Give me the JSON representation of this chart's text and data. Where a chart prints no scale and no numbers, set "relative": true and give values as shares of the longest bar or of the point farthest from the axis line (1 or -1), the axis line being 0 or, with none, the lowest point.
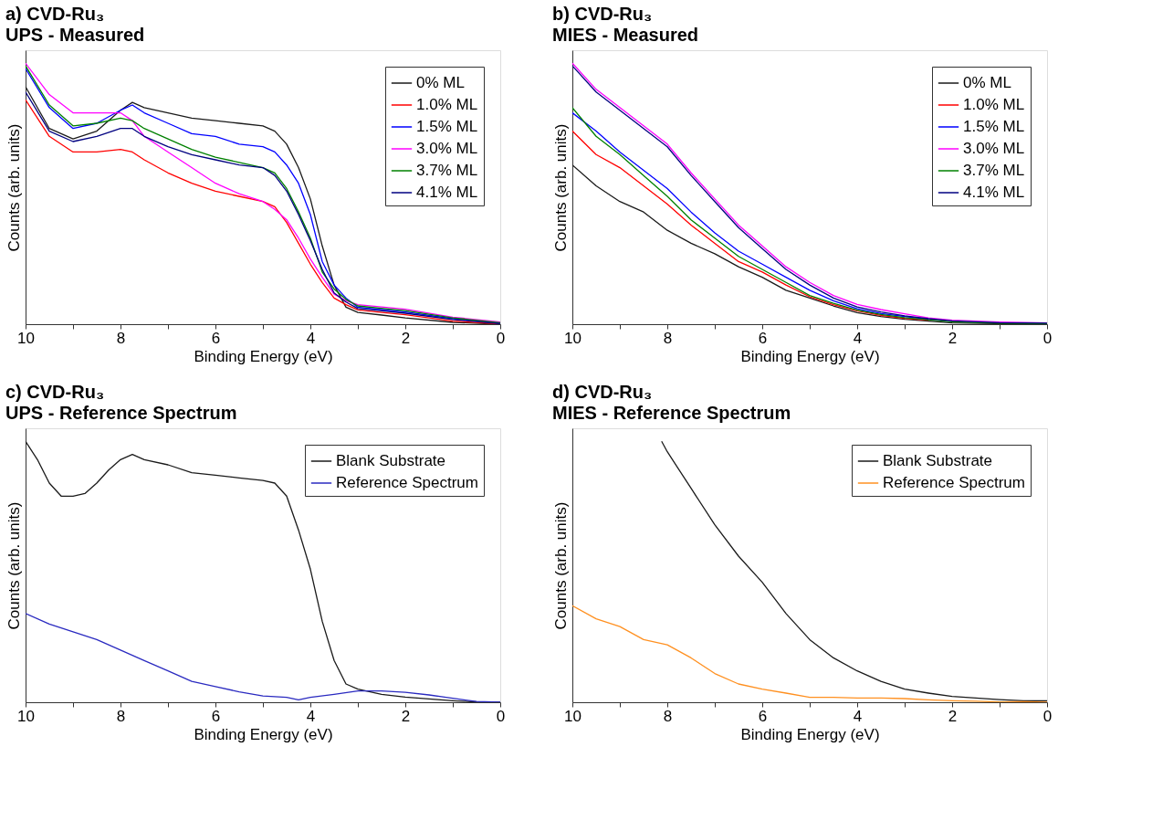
{
  "chart_data": [
    {
      "type": "line",
      "title": "a) CVD-Ru₃",
      "subtitle": "UPS - Measured",
      "xlabel": "Binding Energy (eV)",
      "ylabel": "Counts (arb. units)",
      "relative": true,
      "legend": "top right",
      "grid": false,
      "marker": "none",
      "line_style": "solid",
      "xlim": [
        10,
        0
      ],
      "xticks": [
        10,
        {
          "value": 9,
          "label": null
        },
        8,
        {
          "value": 7,
          "label": null
        },
        6,
        {
          "value": 5,
          "label": null
        },
        4,
        {
          "value": 3,
          "label": null
        },
        2,
        {
          "value": 1,
          "label": null
        },
        0
      ],
      "x": [
        10,
        9.5,
        9,
        8.5,
        8,
        7.75,
        7.5,
        7,
        6.5,
        6,
        5.5,
        5,
        4.75,
        4.5,
        4.25,
        4,
        3.75,
        3.5,
        3.25,
        3,
        2.5,
        2,
        1,
        0
      ],
      "series": [
        {
          "name": "0% ML",
          "color": "#1a1a1a",
          "values": [
            0.91,
            0.75,
            0.71,
            0.74,
            0.82,
            0.85,
            0.83,
            0.81,
            0.79,
            0.78,
            0.77,
            0.76,
            0.74,
            0.69,
            0.6,
            0.48,
            0.3,
            0.15,
            0.065,
            0.045,
            0.035,
            0.024,
            0.007,
            0
          ]
        },
        {
          "name": "1.0% ML",
          "color": "#ff0000",
          "values": [
            0.86,
            0.72,
            0.66,
            0.66,
            0.67,
            0.66,
            0.63,
            0.58,
            0.54,
            0.51,
            0.49,
            0.47,
            0.45,
            0.39,
            0.31,
            0.23,
            0.16,
            0.1,
            0.075,
            0.055,
            0.045,
            0.036,
            0.012,
            0.001
          ]
        },
        {
          "name": "1.5% ML",
          "color": "#0000ff",
          "values": [
            0.98,
            0.83,
            0.75,
            0.77,
            0.82,
            0.84,
            0.81,
            0.77,
            0.73,
            0.72,
            0.69,
            0.68,
            0.66,
            0.61,
            0.54,
            0.42,
            0.24,
            0.15,
            0.1,
            0.065,
            0.056,
            0.047,
            0.021,
            0.004
          ]
        },
        {
          "name": "3.0% ML",
          "color": "#ff00ff",
          "values": [
            1.0,
            0.88,
            0.81,
            0.81,
            0.81,
            0.78,
            0.72,
            0.66,
            0.6,
            0.54,
            0.5,
            0.47,
            0.44,
            0.4,
            0.33,
            0.25,
            0.18,
            0.115,
            0.09,
            0.075,
            0.066,
            0.057,
            0.027,
            0.008
          ]
        },
        {
          "name": "3.7% ML",
          "color": "#008000",
          "values": [
            0.99,
            0.84,
            0.76,
            0.77,
            0.79,
            0.78,
            0.75,
            0.71,
            0.67,
            0.64,
            0.62,
            0.6,
            0.58,
            0.52,
            0.43,
            0.33,
            0.2,
            0.135,
            0.095,
            0.07,
            0.061,
            0.052,
            0.024,
            0.006
          ]
        },
        {
          "name": "4.1% ML",
          "color": "#000080",
          "values": [
            0.89,
            0.74,
            0.7,
            0.72,
            0.75,
            0.75,
            0.72,
            0.68,
            0.65,
            0.63,
            0.61,
            0.6,
            0.57,
            0.51,
            0.42,
            0.32,
            0.21,
            0.12,
            0.085,
            0.06,
            0.051,
            0.042,
            0.018,
            0.002
          ]
        }
      ]
    },
    {
      "type": "line",
      "title": "b) CVD-Ru₃",
      "subtitle": "MIES - Measured",
      "xlabel": "Binding Energy (eV)",
      "ylabel": "Counts (arb. units)",
      "relative": true,
      "legend": "top right",
      "grid": false,
      "marker": "none",
      "line_style": "solid",
      "xlim": [
        10,
        0
      ],
      "xticks": [
        10,
        {
          "value": 9,
          "label": null
        },
        8,
        {
          "value": 7,
          "label": null
        },
        6,
        {
          "value": 5,
          "label": null
        },
        4,
        {
          "value": 3,
          "label": null
        },
        2,
        {
          "value": 1,
          "label": null
        },
        0
      ],
      "x": [
        10,
        9.5,
        9,
        8.5,
        8,
        7.5,
        7,
        6.5,
        6,
        5.5,
        5,
        4.5,
        4,
        3.5,
        3,
        2.5,
        2,
        1,
        0
      ],
      "series": [
        {
          "name": "0% ML",
          "color": "#1a1a1a",
          "values": [
            0.61,
            0.53,
            0.47,
            0.43,
            0.36,
            0.31,
            0.27,
            0.22,
            0.18,
            0.13,
            0.1,
            0.07,
            0.044,
            0.029,
            0.019,
            0.012,
            0.005,
            0.002,
            0
          ]
        },
        {
          "name": "1.0% ML",
          "color": "#ff0000",
          "values": [
            0.74,
            0.65,
            0.6,
            0.53,
            0.46,
            0.38,
            0.31,
            0.24,
            0.2,
            0.15,
            0.105,
            0.075,
            0.051,
            0.034,
            0.022,
            0.015,
            null,
            null,
            null
          ]
        },
        {
          "name": "1.5% ML",
          "color": "#0000ff",
          "values": [
            0.81,
            0.74,
            0.66,
            0.59,
            0.52,
            0.43,
            0.35,
            0.28,
            0.23,
            0.18,
            0.13,
            0.09,
            0.059,
            0.041,
            0.029,
            0.019,
            null,
            null,
            null
          ]
        },
        {
          "name": "3.0% ML",
          "color": "#ff00ff",
          "values": [
            1.0,
            0.9,
            0.83,
            0.76,
            0.69,
            0.58,
            0.48,
            0.38,
            0.3,
            0.22,
            0.16,
            0.11,
            0.076,
            0.056,
            0.04,
            0.024,
            0.015,
            0.008,
            0.005
          ]
        },
        {
          "name": "3.7% ML",
          "color": "#008000",
          "values": [
            0.83,
            0.72,
            0.65,
            0.57,
            0.49,
            0.4,
            0.33,
            0.26,
            0.21,
            0.16,
            0.11,
            0.08,
            0.054,
            0.037,
            0.025,
            0.017,
            0.009,
            0.004,
            0.002
          ]
        },
        {
          "name": "4.1% ML",
          "color": "#000080",
          "values": [
            0.99,
            0.89,
            0.82,
            0.75,
            0.68,
            0.57,
            0.47,
            0.37,
            0.29,
            0.21,
            0.15,
            0.1,
            0.066,
            0.047,
            0.032,
            0.021,
            0.013,
            0.006,
            0.004
          ]
        }
      ]
    },
    {
      "type": "line",
      "title": "c) CVD-Ru₃",
      "subtitle": "UPS - Reference Spectrum",
      "xlabel": "Binding Energy (eV)",
      "ylabel": "Counts (arb. units)",
      "relative": true,
      "legend": "top right",
      "grid": false,
      "marker": "none",
      "line_style": "solid",
      "xlim": [
        10,
        0
      ],
      "xticks": [
        10,
        {
          "value": 9,
          "label": null
        },
        8,
        {
          "value": 7,
          "label": null
        },
        6,
        {
          "value": 5,
          "label": null
        },
        4,
        {
          "value": 3,
          "label": null
        },
        2,
        {
          "value": 1,
          "label": null
        },
        0
      ],
      "series": [
        {
          "name": "Blank Substrate",
          "color": "#1a1a1a",
          "x": [
            10,
            9.75,
            9.5,
            9.25,
            9,
            8.75,
            8.5,
            8.25,
            8,
            7.75,
            7.5,
            7,
            6.5,
            6,
            5.5,
            5,
            4.75,
            4.5,
            4.25,
            4,
            3.75,
            3.5,
            3.25,
            3,
            2.5,
            2,
            1.5,
            1,
            0.5,
            0
          ],
          "values": [
            1.0,
            0.93,
            0.84,
            0.79,
            0.79,
            0.8,
            0.84,
            0.89,
            0.93,
            0.95,
            0.93,
            0.91,
            0.88,
            0.87,
            0.86,
            0.85,
            0.84,
            0.79,
            0.66,
            0.51,
            0.31,
            0.16,
            0.07,
            0.05,
            0.03,
            0.02,
            0.013,
            0.006,
            0.001,
            0
          ]
        },
        {
          "name": "Reference Spectrum",
          "color": "#2a2ac0",
          "x": [
            10,
            9.5,
            9,
            8.5,
            8,
            7.5,
            7,
            6.5,
            6,
            5.5,
            5,
            4.5,
            4.25,
            4,
            3.5,
            3,
            2.5,
            2,
            1.5,
            1,
            0.5,
            0
          ],
          "values": [
            0.34,
            0.3,
            0.27,
            0.24,
            0.2,
            0.16,
            0.12,
            0.08,
            0.06,
            0.04,
            0.024,
            0.019,
            0.009,
            0.019,
            0.03,
            0.043,
            0.043,
            0.038,
            0.028,
            0.015,
            0.003,
            0
          ]
        }
      ]
    },
    {
      "type": "line",
      "title": "d) CVD-Ru₃",
      "subtitle": "MIES - Reference Spectrum",
      "xlabel": "Binding Energy (eV)",
      "ylabel": "Counts (arb. units)",
      "relative": true,
      "legend": "top right",
      "grid": false,
      "marker": "none",
      "line_style": "solid",
      "xlim": [
        10,
        0
      ],
      "xticks": [
        10,
        {
          "value": 9,
          "label": null
        },
        8,
        {
          "value": 7,
          "label": null
        },
        6,
        {
          "value": 5,
          "label": null
        },
        4,
        {
          "value": 3,
          "label": null
        },
        2,
        {
          "value": 1,
          "label": null
        },
        0
      ],
      "series": [
        {
          "name": "Blank Substrate",
          "color": "#1a1a1a",
          "x": [
            8.12,
            8,
            7.5,
            7,
            6.5,
            6,
            5.5,
            5,
            4.5,
            4,
            3.5,
            3,
            2.5,
            2,
            1.5,
            1,
            0.5,
            0
          ],
          "values": [
            1.0,
            0.96,
            0.82,
            0.68,
            0.56,
            0.46,
            0.34,
            0.24,
            0.17,
            0.12,
            0.08,
            0.05,
            0.035,
            0.022,
            0.016,
            0.01,
            0.006,
            0.006
          ]
        },
        {
          "name": "Reference Spectrum",
          "color": "#ff9020",
          "x": [
            10,
            9.5,
            9,
            8.5,
            8,
            7.5,
            7,
            6.5,
            6,
            5.5,
            5,
            4.5,
            4,
            3.5,
            3,
            2.5,
            2,
            1.5,
            1,
            0.5,
            0
          ],
          "values": [
            0.37,
            0.32,
            0.29,
            0.24,
            0.22,
            0.17,
            0.11,
            0.07,
            0.05,
            0.035,
            0.019,
            0.019,
            0.016,
            0.016,
            0.014,
            0.009,
            0.006,
            0.004,
            0.001,
            0.002,
            0
          ]
        }
      ]
    }
  ]
}
